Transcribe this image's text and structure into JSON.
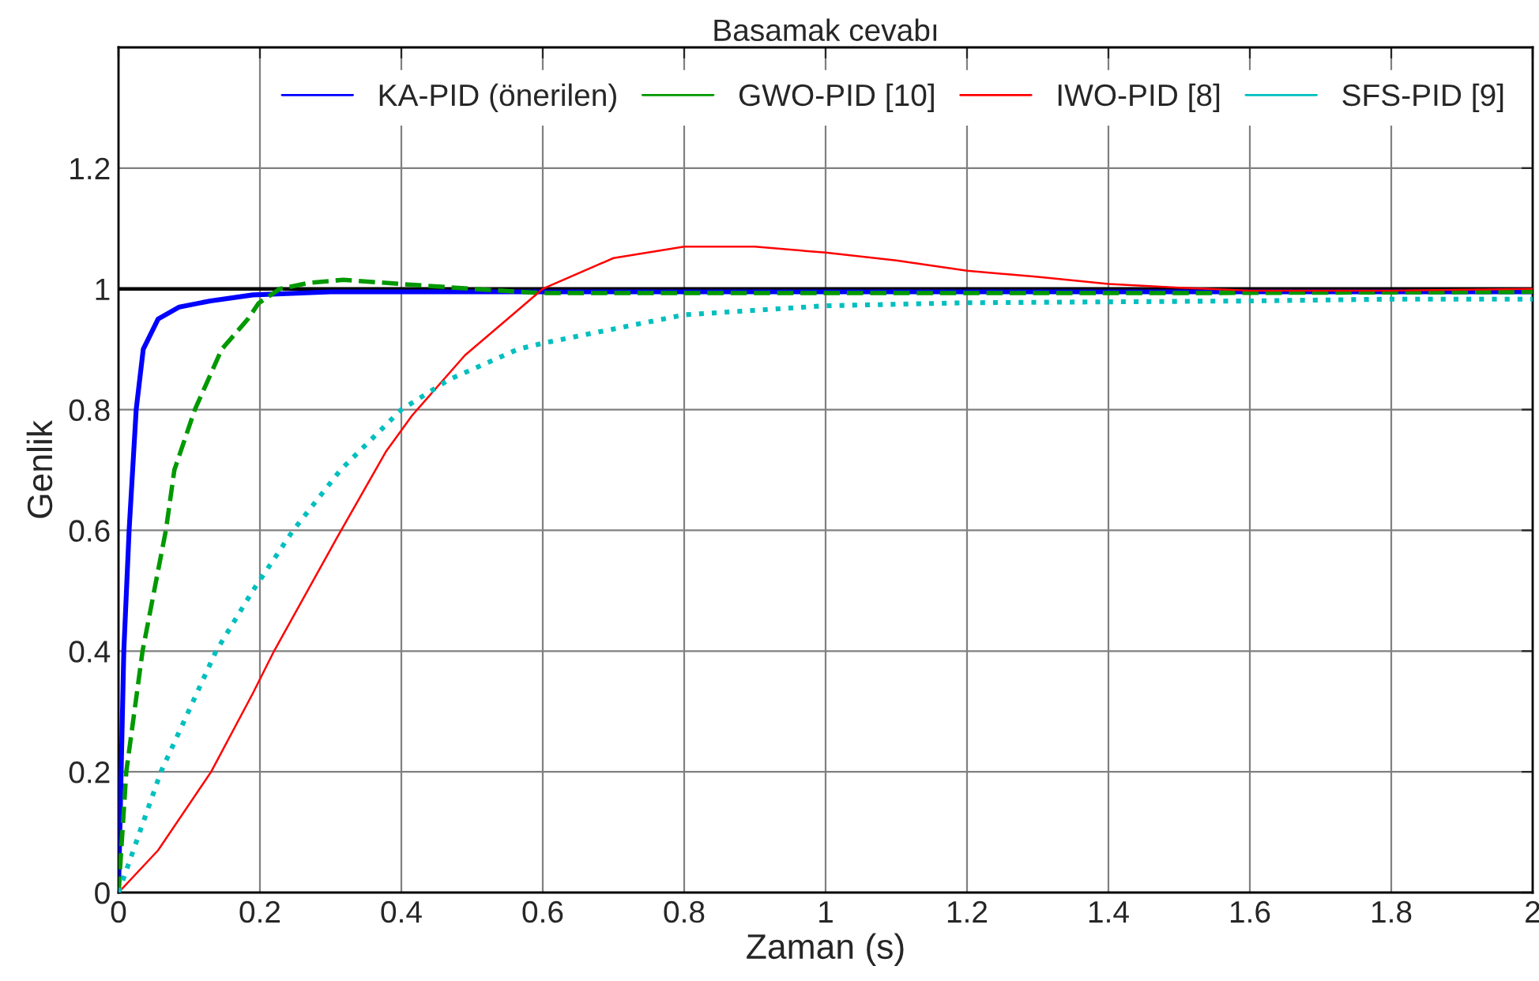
{
  "chart_data": {
    "type": "line",
    "title": "Basamak cevabı",
    "xlabel": "Zaman (s)",
    "ylabel": "Genlik",
    "xlim": [
      0,
      2
    ],
    "ylim": [
      0,
      1.4
    ],
    "xticks": [
      0,
      0.2,
      0.4,
      0.6,
      0.8,
      1,
      1.2,
      1.4,
      1.6,
      1.8,
      2
    ],
    "yticks": [
      0,
      0.2,
      0.4,
      0.6,
      0.8,
      1,
      1.2
    ],
    "grid": true,
    "legend": "top right",
    "ref_lines": [
      {
        "axis": "y",
        "value": 1,
        "color": "#000000"
      }
    ],
    "series": [
      {
        "name": "KA-PID (önerilen)",
        "color": "#0000ff",
        "line_style": "solid",
        "x": [
          0,
          0.0075,
          0.015,
          0.025,
          0.035,
          0.056,
          0.086,
          0.13,
          0.19,
          0.3,
          0.6,
          1,
          1.5,
          2
        ],
        "values": [
          0,
          0.4,
          0.6,
          0.8,
          0.9,
          0.95,
          0.97,
          0.98,
          0.99,
          0.995,
          0.995,
          0.995,
          0.995,
          0.995
        ]
      },
      {
        "name": "GWO-PID [10]",
        "color": "#009900",
        "line_style": "dashed",
        "x": [
          0,
          0.011,
          0.034,
          0.067,
          0.079,
          0.108,
          0.146,
          0.183,
          0.198,
          0.228,
          0.27,
          0.318,
          0.4,
          0.5,
          0.6,
          1,
          1.5,
          2
        ],
        "values": [
          0,
          0.2,
          0.4,
          0.6,
          0.7,
          0.8,
          0.9,
          0.95,
          0.976,
          1.0,
          1.01,
          1.015,
          1.008,
          1.0,
          0.993,
          0.993,
          0.993,
          0.995
        ]
      },
      {
        "name": "IWO-PID [8]",
        "color": "#ff0000",
        "line_style": "solid",
        "x": [
          0,
          0.056,
          0.131,
          0.19,
          0.22,
          0.31,
          0.378,
          0.415,
          0.49,
          0.55,
          0.6,
          0.7,
          0.8,
          0.9,
          1.0,
          1.1,
          1.2,
          1.3,
          1.4,
          1.5,
          1.6,
          1.8,
          2
        ],
        "values": [
          0,
          0.07,
          0.2,
          0.33,
          0.4,
          0.59,
          0.73,
          0.79,
          0.89,
          0.95,
          1.0,
          1.051,
          1.07,
          1.07,
          1.06,
          1.047,
          1.03,
          1.02,
          1.008,
          1.002,
          0.997,
          0.997,
          1.0
        ]
      },
      {
        "name": "SFS-PID [9]",
        "color": "#00bfbf",
        "line_style": "dotted",
        "x": [
          0,
          0.06,
          0.138,
          0.19,
          0.247,
          0.314,
          0.4,
          0.468,
          0.565,
          0.6,
          0.8,
          1.0,
          1.2,
          1.6,
          1.8,
          2
        ],
        "values": [
          0,
          0.2,
          0.4,
          0.5,
          0.6,
          0.7,
          0.8,
          0.85,
          0.9,
          0.91,
          0.957,
          0.972,
          0.977,
          0.98,
          0.983,
          0.983
        ]
      }
    ]
  }
}
